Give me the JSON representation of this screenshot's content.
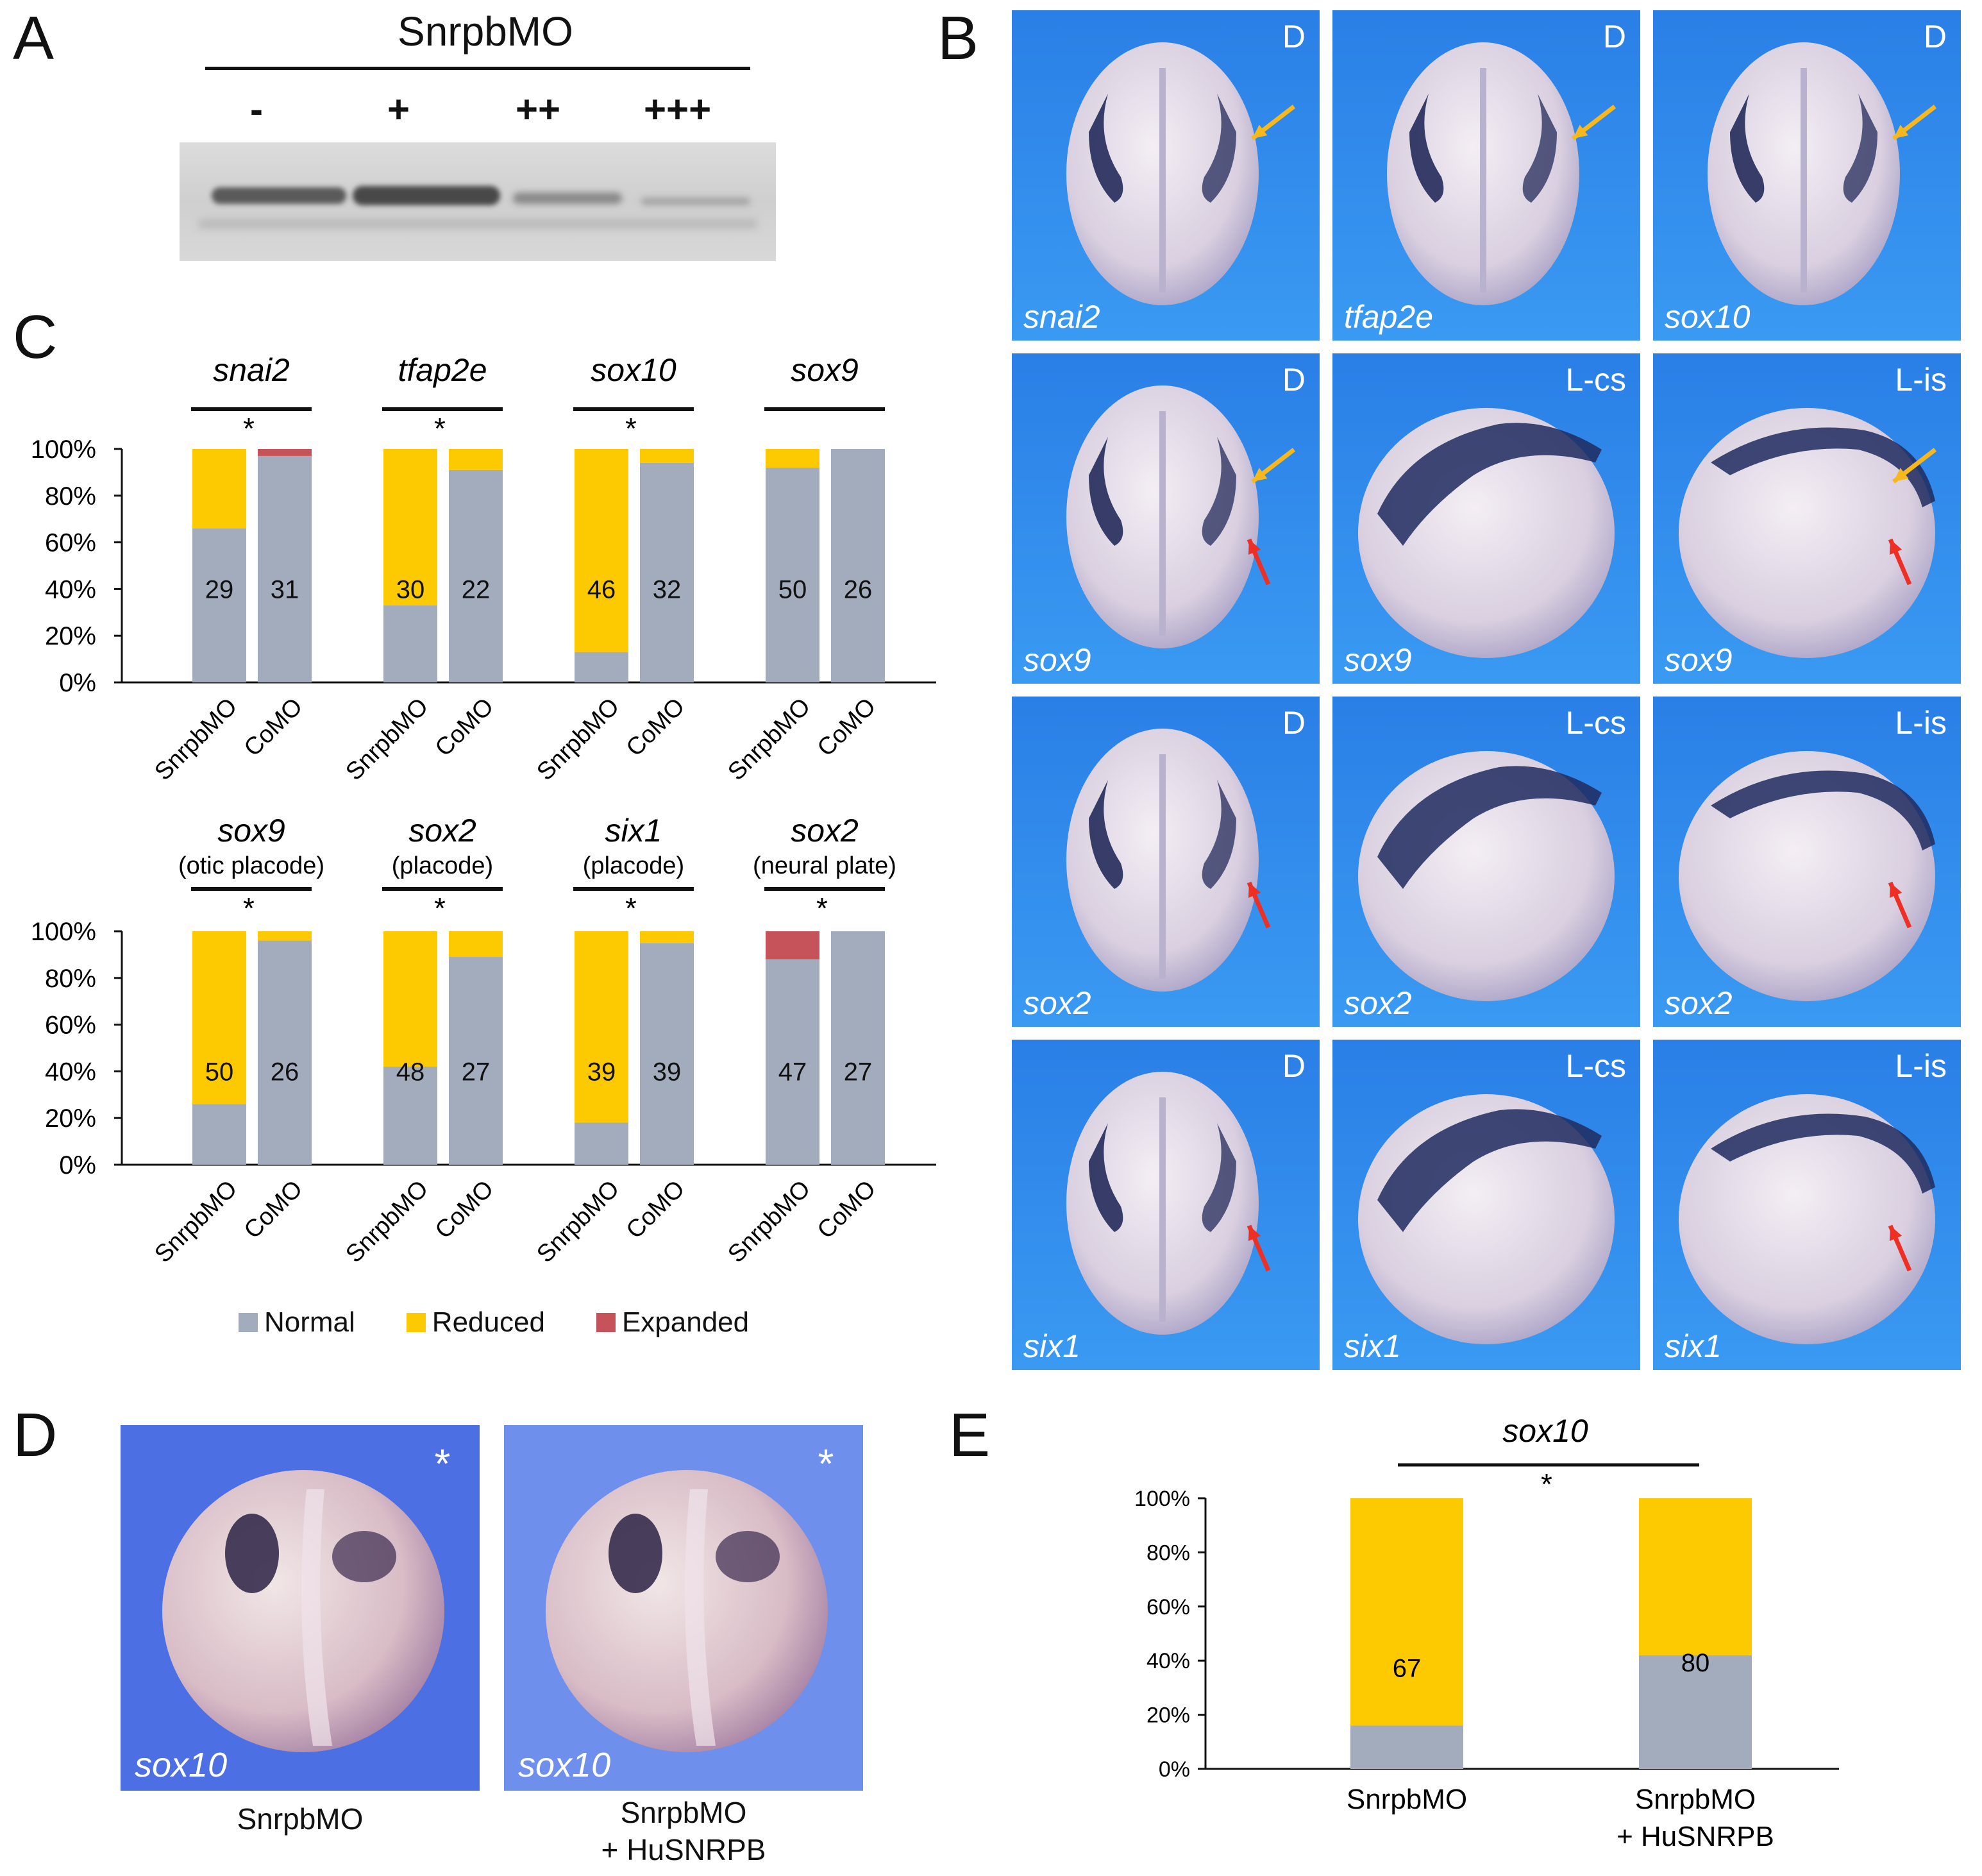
{
  "colors": {
    "normal": "#a2acbd",
    "reduced": "#fdc900",
    "expanded": "#c6525a",
    "tile_bg": "#2f8ff0",
    "tile_bg_d": "#4c6de6",
    "arrow_yellow": "#f6b81d",
    "arrow_red": "#ee2f24"
  },
  "panel_a": {
    "letter": "A",
    "title": "SnrpbMO",
    "doses": [
      "-",
      "+",
      "++",
      "+++"
    ]
  },
  "panel_b": {
    "letter": "B",
    "tiles": [
      {
        "gene": "snai2",
        "view": "D",
        "arrows": [
          "yellow"
        ]
      },
      {
        "gene": "tfap2e",
        "view": "D",
        "arrows": [
          "yellow"
        ]
      },
      {
        "gene": "sox10",
        "view": "D",
        "arrows": [
          "yellow"
        ]
      },
      {
        "gene": "sox9",
        "view": "D",
        "arrows": [
          "yellow",
          "red"
        ]
      },
      {
        "gene": "sox9",
        "view": "L-cs",
        "arrows": []
      },
      {
        "gene": "sox9",
        "view": "L-is",
        "arrows": [
          "yellow",
          "red"
        ]
      },
      {
        "gene": "sox2",
        "view": "D",
        "arrows": [
          "red"
        ]
      },
      {
        "gene": "sox2",
        "view": "L-cs",
        "arrows": []
      },
      {
        "gene": "sox2",
        "view": "L-is",
        "arrows": [
          "red"
        ]
      },
      {
        "gene": "six1",
        "view": "D",
        "arrows": [
          "red"
        ]
      },
      {
        "gene": "six1",
        "view": "L-cs",
        "arrows": []
      },
      {
        "gene": "six1",
        "view": "L-is",
        "arrows": [
          "red"
        ]
      }
    ]
  },
  "panel_c": {
    "letter": "C",
    "legend": {
      "normal": "Normal",
      "reduced": "Reduced",
      "expanded": "Expanded"
    }
  },
  "panel_d": {
    "letter": "D",
    "tiles": [
      {
        "gene": "sox10",
        "mark": "*",
        "caption_line1": "SnrpbMO",
        "caption_line2": ""
      },
      {
        "gene": "sox10",
        "mark": "*",
        "caption_line1": "SnrpbMO",
        "caption_line2": "+ HuSNRPB"
      }
    ]
  },
  "panel_e": {
    "letter": "E"
  },
  "chart_data": [
    {
      "type": "bar",
      "stacked": true,
      "panel": "C-top",
      "yticks": [
        "100%",
        "80%",
        "60%",
        "40%",
        "20%",
        "0%"
      ],
      "ylim": [
        0,
        100
      ],
      "groups": [
        {
          "gene": "snai2",
          "subtitle": "",
          "significance": "*",
          "bars": [
            {
              "label": "SnrpbMO",
              "n": "29",
              "normal": 66,
              "reduced": 34,
              "expanded": 0
            },
            {
              "label": "CoMO",
              "n": "31",
              "normal": 97,
              "reduced": 0,
              "expanded": 3
            }
          ]
        },
        {
          "gene": "tfap2e",
          "subtitle": "",
          "significance": "*",
          "bars": [
            {
              "label": "SnrpbMO",
              "n": "30",
              "normal": 33,
              "reduced": 67,
              "expanded": 0
            },
            {
              "label": "CoMO",
              "n": "22",
              "normal": 91,
              "reduced": 9,
              "expanded": 0
            }
          ]
        },
        {
          "gene": "sox10",
          "subtitle": "",
          "significance": "*",
          "bars": [
            {
              "label": "SnrpbMO",
              "n": "46",
              "normal": 13,
              "reduced": 87,
              "expanded": 0
            },
            {
              "label": "CoMO",
              "n": "32",
              "normal": 94,
              "reduced": 6,
              "expanded": 0
            }
          ]
        },
        {
          "gene": "sox9",
          "subtitle": "",
          "significance": "",
          "bars": [
            {
              "label": "SnrpbMO",
              "n": "50",
              "normal": 92,
              "reduced": 8,
              "expanded": 0
            },
            {
              "label": "CoMO",
              "n": "26",
              "normal": 100,
              "reduced": 0,
              "expanded": 0
            }
          ]
        }
      ]
    },
    {
      "type": "bar",
      "stacked": true,
      "panel": "C-bottom",
      "yticks": [
        "100%",
        "80%",
        "60%",
        "40%",
        "20%",
        "0%"
      ],
      "ylim": [
        0,
        100
      ],
      "groups": [
        {
          "gene": "sox9",
          "subtitle": "(otic placode)",
          "significance": "*",
          "bars": [
            {
              "label": "SnrpbMO",
              "n": "50",
              "normal": 26,
              "reduced": 74,
              "expanded": 0
            },
            {
              "label": "CoMO",
              "n": "26",
              "normal": 96,
              "reduced": 4,
              "expanded": 0
            }
          ]
        },
        {
          "gene": "sox2",
          "subtitle": "(placode)",
          "significance": "*",
          "bars": [
            {
              "label": "SnrpbMO",
              "n": "48",
              "normal": 42,
              "reduced": 58,
              "expanded": 0
            },
            {
              "label": "CoMO",
              "n": "27",
              "normal": 89,
              "reduced": 11,
              "expanded": 0
            }
          ]
        },
        {
          "gene": "six1",
          "subtitle": "(placode)",
          "significance": "*",
          "bars": [
            {
              "label": "SnrpbMO",
              "n": "39",
              "normal": 18,
              "reduced": 82,
              "expanded": 0
            },
            {
              "label": "CoMO",
              "n": "39",
              "normal": 95,
              "reduced": 5,
              "expanded": 0
            }
          ]
        },
        {
          "gene": "sox2",
          "subtitle": "(neural plate)",
          "significance": "*",
          "bars": [
            {
              "label": "SnrpbMO",
              "n": "47",
              "normal": 88,
              "reduced": 0,
              "expanded": 12
            },
            {
              "label": "CoMO",
              "n": "27",
              "normal": 100,
              "reduced": 0,
              "expanded": 0
            }
          ]
        }
      ]
    },
    {
      "type": "bar",
      "stacked": true,
      "panel": "E",
      "title": "sox10",
      "significance": "*",
      "yticks": [
        "100%",
        "80%",
        "60%",
        "40%",
        "20%",
        "0%"
      ],
      "ylim": [
        0,
        100
      ],
      "bars": [
        {
          "label_line1": "SnrpbMO",
          "label_line2": "",
          "n": "67",
          "normal": 16,
          "reduced": 84
        },
        {
          "label_line1": "SnrpbMO",
          "label_line2": "+ HuSNRPB",
          "n": "80",
          "normal": 42,
          "reduced": 58
        }
      ]
    }
  ]
}
